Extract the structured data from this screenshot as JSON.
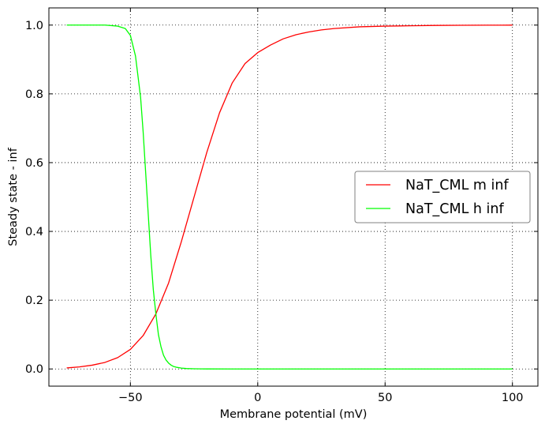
{
  "chart_data": {
    "type": "line",
    "title": "",
    "xlabel": "Membrane potential (mV)",
    "ylabel": "Steady state - inf",
    "xlim": [
      -82,
      110
    ],
    "ylim": [
      -0.05,
      1.05
    ],
    "x_ticks": [
      -50,
      0,
      50,
      100
    ],
    "x_tick_labels": [
      "−50",
      "0",
      "50",
      "100"
    ],
    "y_ticks": [
      0.0,
      0.2,
      0.4,
      0.6,
      0.8,
      1.0
    ],
    "y_tick_labels": [
      "0.0",
      "0.2",
      "0.4",
      "0.6",
      "0.8",
      "1.0"
    ],
    "grid": true,
    "legend_position": "center-right",
    "series": [
      {
        "name": "NaT_CML m inf",
        "color": "#ff0000",
        "x": [
          -75,
          -70,
          -65,
          -60,
          -55,
          -50,
          -45,
          -40,
          -35,
          -30,
          -25,
          -20,
          -15,
          -10,
          -5,
          0,
          5,
          10,
          15,
          20,
          25,
          30,
          40,
          50,
          60,
          70,
          80,
          90,
          100
        ],
        "y": [
          0.003,
          0.006,
          0.011,
          0.019,
          0.033,
          0.057,
          0.097,
          0.16,
          0.25,
          0.37,
          0.5,
          0.63,
          0.745,
          0.832,
          0.888,
          0.92,
          0.942,
          0.96,
          0.972,
          0.98,
          0.986,
          0.99,
          0.995,
          0.997,
          0.998,
          0.999,
          0.9995,
          0.9997,
          0.9999
        ]
      },
      {
        "name": "NaT_CML h inf",
        "color": "#00ff00",
        "x": [
          -75,
          -70,
          -65,
          -60,
          -55,
          -52,
          -50,
          -48,
          -46,
          -45,
          -44,
          -43,
          -42,
          -41,
          -40,
          -39,
          -38,
          -37,
          -36,
          -35,
          -34,
          -33,
          -32,
          -30,
          -28,
          -25,
          -20,
          -10,
          0,
          25,
          50,
          75,
          100
        ],
        "y": [
          1.0,
          1.0,
          1.0,
          1.0,
          0.997,
          0.99,
          0.97,
          0.91,
          0.79,
          0.69,
          0.57,
          0.45,
          0.33,
          0.23,
          0.16,
          0.1,
          0.065,
          0.04,
          0.026,
          0.017,
          0.011,
          0.007,
          0.005,
          0.0025,
          0.0012,
          0.0005,
          0.0001,
          0.0,
          0.0,
          0.0,
          0.0,
          0.0,
          0.0
        ]
      }
    ]
  }
}
